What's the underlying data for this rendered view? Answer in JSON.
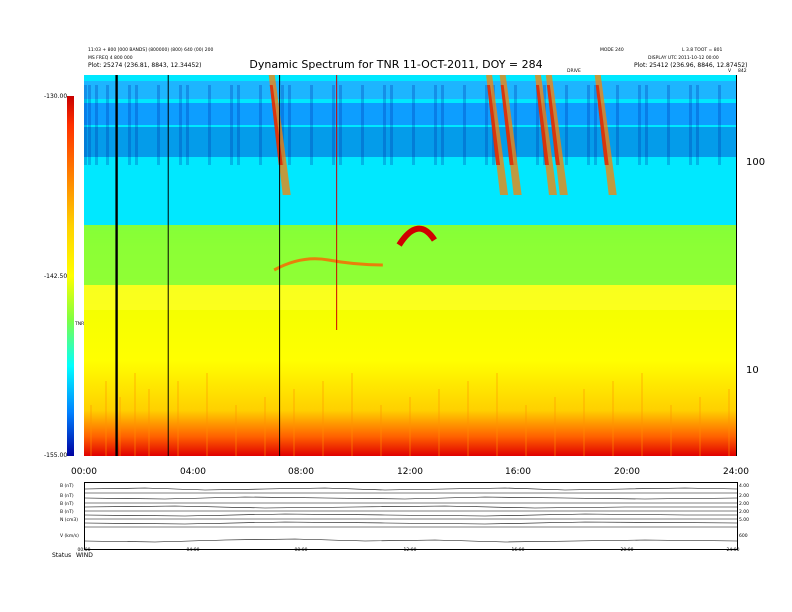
{
  "chart_data": {
    "type": "heatmap",
    "title": "Dynamic Spectrum for TNR 11-OCT-2011, DOY = 284",
    "header_left": [
      "11:03 + 800 [000 BANDS] (800000) (800) 640 (00) 200",
      "MS FREQ 4 800 000",
      "Plot: 25274 (236.81, 8843, 12.34452)"
    ],
    "header_right": [
      "MODE 240",
      "L 3.8 TOOT = 801",
      "DISPLAY UTC 2011-10-12 00:00",
      "Plot: 25412 (236.96, 8846, 12.87452)"
    ],
    "header_mid": "DRIVE",
    "header_mid_right": "V",
    "header_far_right": "842",
    "x_ticks": [
      "00:00",
      "04:00",
      "08:00",
      "12:00",
      "16:00",
      "20:00",
      "24:00"
    ],
    "x_range_hours": [
      0,
      24
    ],
    "y_axis": "log frequency (kHz)",
    "y_ticks": [
      "100",
      "10"
    ],
    "y_range": [
      4,
      260
    ],
    "colorbar": {
      "label": "TNR",
      "ticks": [
        "-130.00",
        "-142.50",
        "-155.00"
      ],
      "range": [
        -155,
        -130
      ]
    },
    "panels": [
      {
        "label": "B (nT)",
        "right": "4.00"
      },
      {
        "label": "B (nT)",
        "right": "2.00"
      },
      {
        "label": "B (nT)",
        "right": "2.00"
      },
      {
        "label": "B (nT)",
        "right": "2.00"
      },
      {
        "label": "N (cm3)",
        "right": "5.00"
      },
      {
        "label": "V (km/s)",
        "right": "600"
      }
    ],
    "panel_ticks": [
      "00:00",
      "04:00",
      "08:00",
      "12:00",
      "16:00",
      "20:00",
      "24:00"
    ],
    "footer_labels": [
      "Status",
      "WIND"
    ]
  }
}
